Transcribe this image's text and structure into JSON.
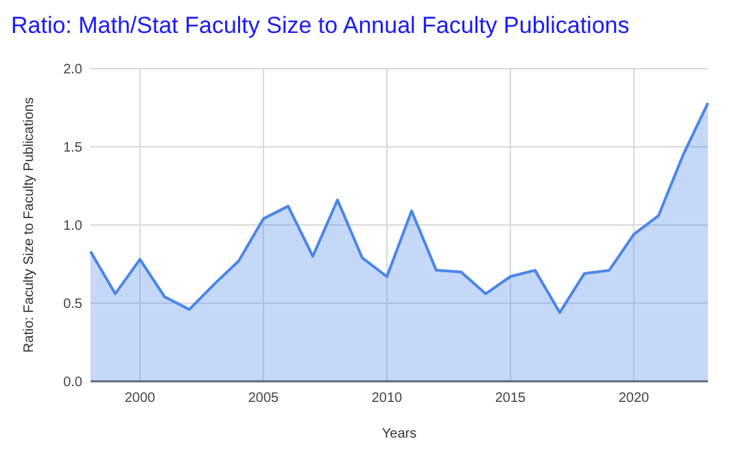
{
  "chart_data": {
    "type": "area",
    "title": "Ratio: Math/Stat Faculty Size to Annual Faculty Publications",
    "xlabel": "Years",
    "ylabel": "Ratio: Faculty Size to Faculty Publications",
    "x": [
      1998,
      1999,
      2000,
      2001,
      2002,
      2003,
      2004,
      2005,
      2006,
      2007,
      2008,
      2009,
      2010,
      2011,
      2012,
      2013,
      2014,
      2015,
      2016,
      2017,
      2018,
      2019,
      2020,
      2021,
      2022,
      2023
    ],
    "series": [
      {
        "color": "#4a86e8",
        "values": [
          0.83,
          0.56,
          0.78,
          0.54,
          0.46,
          0.62,
          0.77,
          1.04,
          1.12,
          0.8,
          1.16,
          0.79,
          0.67,
          1.09,
          0.71,
          0.7,
          0.56,
          0.67,
          0.71,
          0.44,
          0.69,
          0.71,
          0.94,
          1.06,
          1.45,
          1.78
        ]
      }
    ],
    "xlim": [
      1998,
      2023
    ],
    "xticks": [
      2000,
      2005,
      2010,
      2015,
      2020
    ],
    "ylim": [
      0,
      2
    ],
    "yticks": [
      {
        "value": 0,
        "label": "0.0"
      },
      {
        "value": 0.5,
        "label": "0.5"
      },
      {
        "value": 1,
        "label": "1.0"
      },
      {
        "value": 1.5,
        "label": "1.5"
      },
      {
        "value": 2,
        "label": "2.0"
      }
    ],
    "grid": true
  }
}
